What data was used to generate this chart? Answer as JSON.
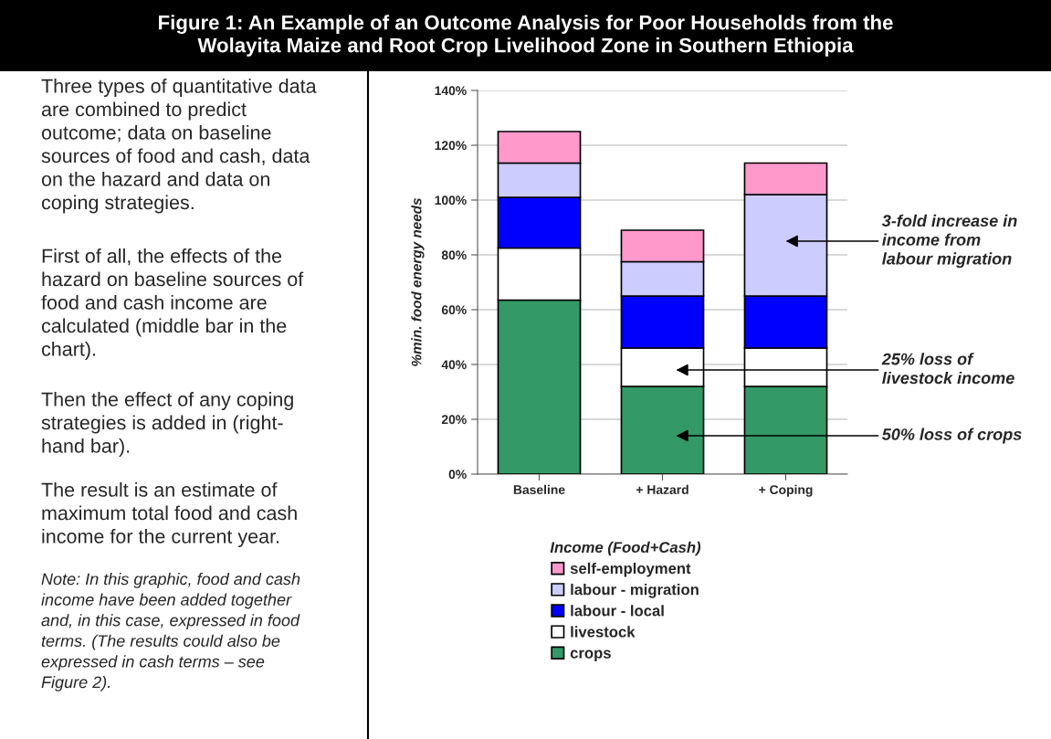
{
  "chart_data": {
    "type": "bar",
    "stacked": true,
    "title": "Figure 1: An Example of an Outcome Analysis for Poor Households from the\nWolayita Maize and Root Crop Livelihood Zone in Southern Ethiopia",
    "ylabel": "%min. food energy needs",
    "legend_title": "Income (Food+Cash)",
    "categories": [
      "Baseline",
      "+ Hazard",
      "+ Coping"
    ],
    "series": [
      {
        "name": "crops",
        "color": "#339966",
        "values": [
          63.5,
          32,
          32
        ]
      },
      {
        "name": "livestock",
        "color": "#ffffff",
        "values": [
          19,
          14,
          14
        ]
      },
      {
        "name": "labour - local",
        "color": "#0000ff",
        "values": [
          18.5,
          19,
          19
        ]
      },
      {
        "name": "labour - migration",
        "color": "#ccccff",
        "values": [
          12.5,
          12.5,
          37
        ]
      },
      {
        "name": "self-employment",
        "color": "#ff99cc",
        "values": [
          11.5,
          11.5,
          11.5
        ]
      }
    ],
    "ylim": [
      0,
      140
    ],
    "yticks": [
      {
        "value": 0,
        "label": "0%"
      },
      {
        "value": 20,
        "label": "20%"
      },
      {
        "value": 40,
        "label": "40%"
      },
      {
        "value": 60,
        "label": "60%"
      },
      {
        "value": 80,
        "label": "80%"
      },
      {
        "value": 100,
        "label": "100%"
      },
      {
        "value": 120,
        "label": "120%"
      },
      {
        "value": 140,
        "label": "140%"
      }
    ],
    "grid": "y",
    "legend": "bottom",
    "annotations": [
      "Three types of quantitative data\nare combined to predict\noutcome; data on baseline\nsources of food and cash, data\non the hazard and data on\ncoping strategies.",
      "First of all, the effects of the\nhazard on baseline sources of\nfood and cash income are\ncalculated (middle bar in the\nchart).",
      "Then the effect of any coping\nstrategies is added in (right-\nhand bar).",
      "The result is an estimate of\nmaximum total food and cash\nincome for the current year.",
      "Note: In this graphic, food and cash\nincome have been added together\nand, in this case, expressed in food\nterms. (The results could also be\nexpressed in cash terms – see\nFigure 2).",
      "3-fold increase in\nincome from\nlabour migration",
      "25% loss of\nlivestock income",
      "50% loss of crops"
    ]
  }
}
